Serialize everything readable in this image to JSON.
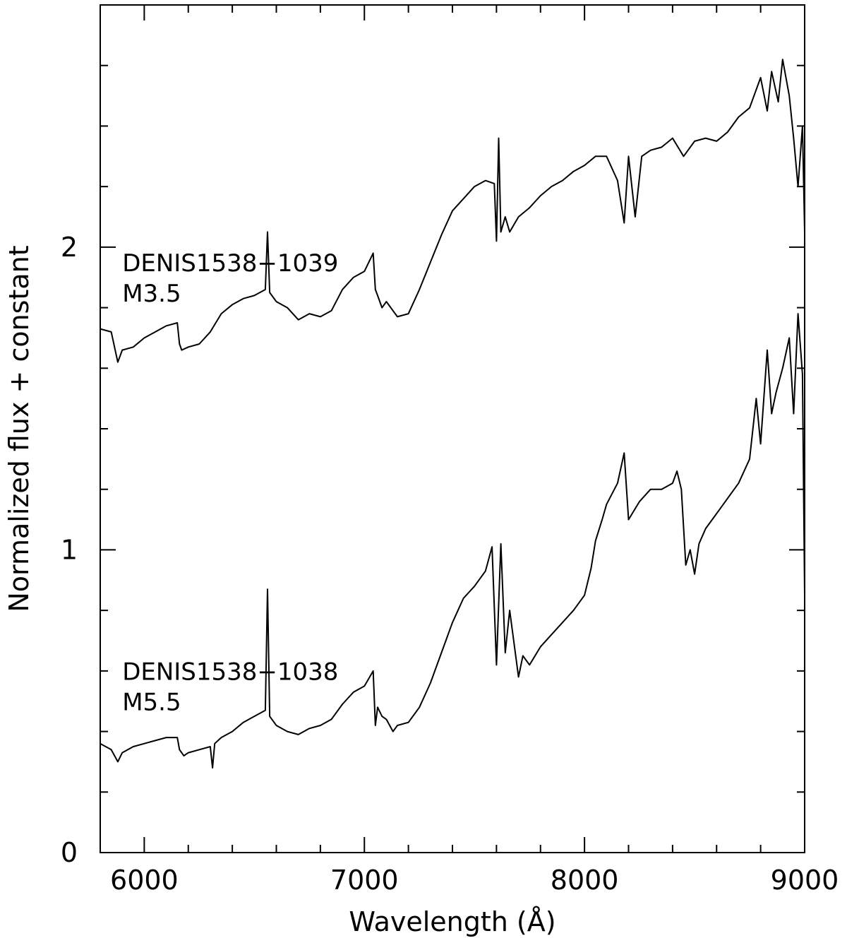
{
  "chart_data": {
    "type": "line",
    "title": "",
    "xlabel": "Wavelength (Å)",
    "ylabel": "Normalized flux + constant",
    "xlim": [
      5800,
      9000
    ],
    "ylim": [
      0,
      2.8
    ],
    "xticks": [
      {
        "value": 6000,
        "label": "6000"
      },
      {
        "value": 7000,
        "label": "7000"
      },
      {
        "value": 8000,
        "label": "8000"
      },
      {
        "value": 9000,
        "label": "9000"
      }
    ],
    "x_minor_step": 200,
    "yticks": [
      {
        "value": 0,
        "label": "0"
      },
      {
        "value": 1,
        "label": "1"
      },
      {
        "value": 2,
        "label": "2"
      }
    ],
    "y_minor_step": 0.2,
    "grid": false,
    "annotations": [
      {
        "text": "DENIS1538−1039",
        "x": 5900,
        "y": 1.92
      },
      {
        "text": "M3.5",
        "x": 5900,
        "y": 1.82
      },
      {
        "text": "DENIS1538−1038",
        "x": 5900,
        "y": 0.57
      },
      {
        "text": "M5.5",
        "x": 5900,
        "y": 0.47
      }
    ],
    "series": [
      {
        "label": "DENIS1538−1039 M3.5",
        "x": [
          5800,
          5850,
          5880,
          5900,
          5950,
          6000,
          6050,
          6100,
          6150,
          6160,
          6170,
          6200,
          6250,
          6300,
          6350,
          6400,
          6450,
          6500,
          6550,
          6560,
          6570,
          6600,
          6650,
          6700,
          6750,
          6800,
          6850,
          6900,
          6950,
          7000,
          7040,
          7050,
          7060,
          7080,
          7100,
          7150,
          7200,
          7250,
          7300,
          7350,
          7400,
          7450,
          7500,
          7550,
          7590,
          7600,
          7610,
          7620,
          7640,
          7660,
          7700,
          7750,
          7800,
          7850,
          7900,
          7950,
          8000,
          8050,
          8100,
          8150,
          8180,
          8200,
          8230,
          8260,
          8300,
          8350,
          8400,
          8450,
          8500,
          8550,
          8600,
          8650,
          8700,
          8750,
          8800,
          8830,
          8850,
          8880,
          8900,
          8930,
          8950,
          8970,
          8990,
          9000
        ],
        "y": [
          1.73,
          1.72,
          1.62,
          1.66,
          1.67,
          1.7,
          1.72,
          1.74,
          1.75,
          1.68,
          1.66,
          1.67,
          1.68,
          1.72,
          1.78,
          1.81,
          1.83,
          1.84,
          1.86,
          2.05,
          1.85,
          1.82,
          1.8,
          1.76,
          1.78,
          1.77,
          1.79,
          1.86,
          1.9,
          1.92,
          1.98,
          1.86,
          1.84,
          1.8,
          1.82,
          1.77,
          1.78,
          1.86,
          1.95,
          2.04,
          2.12,
          2.16,
          2.2,
          2.22,
          2.21,
          2.02,
          2.36,
          2.05,
          2.1,
          2.05,
          2.1,
          2.13,
          2.17,
          2.2,
          2.22,
          2.25,
          2.27,
          2.3,
          2.3,
          2.22,
          2.08,
          2.3,
          2.1,
          2.3,
          2.32,
          2.33,
          2.36,
          2.3,
          2.35,
          2.36,
          2.35,
          2.38,
          2.43,
          2.46,
          2.56,
          2.45,
          2.58,
          2.48,
          2.62,
          2.5,
          2.36,
          2.2,
          2.4,
          2.05
        ]
      },
      {
        "label": "DENIS1538−1038 M5.5",
        "x": [
          5800,
          5850,
          5880,
          5900,
          5950,
          6000,
          6050,
          6100,
          6150,
          6160,
          6180,
          6200,
          6250,
          6300,
          6310,
          6320,
          6350,
          6400,
          6450,
          6500,
          6550,
          6560,
          6570,
          6600,
          6650,
          6700,
          6750,
          6800,
          6850,
          6900,
          6950,
          7000,
          7040,
          7050,
          7060,
          7080,
          7100,
          7130,
          7150,
          7200,
          7250,
          7300,
          7350,
          7400,
          7450,
          7500,
          7550,
          7580,
          7600,
          7620,
          7640,
          7660,
          7700,
          7720,
          7750,
          7800,
          7850,
          7900,
          7950,
          8000,
          8030,
          8050,
          8080,
          8100,
          8150,
          8180,
          8200,
          8250,
          8300,
          8350,
          8400,
          8420,
          8440,
          8460,
          8480,
          8500,
          8520,
          8550,
          8600,
          8650,
          8700,
          8750,
          8780,
          8800,
          8830,
          8850,
          8870,
          8900,
          8930,
          8950,
          8970,
          8990,
          9000
        ],
        "y": [
          0.36,
          0.34,
          0.3,
          0.33,
          0.35,
          0.36,
          0.37,
          0.38,
          0.38,
          0.34,
          0.32,
          0.33,
          0.34,
          0.35,
          0.28,
          0.36,
          0.38,
          0.4,
          0.43,
          0.45,
          0.47,
          0.87,
          0.45,
          0.42,
          0.4,
          0.39,
          0.41,
          0.42,
          0.44,
          0.49,
          0.53,
          0.55,
          0.6,
          0.42,
          0.48,
          0.45,
          0.44,
          0.4,
          0.42,
          0.43,
          0.48,
          0.56,
          0.66,
          0.76,
          0.84,
          0.88,
          0.93,
          1.01,
          0.62,
          1.02,
          0.66,
          0.8,
          0.58,
          0.65,
          0.62,
          0.68,
          0.72,
          0.76,
          0.8,
          0.85,
          0.94,
          1.03,
          1.1,
          1.15,
          1.22,
          1.32,
          1.1,
          1.16,
          1.2,
          1.2,
          1.22,
          1.26,
          1.2,
          0.95,
          1.0,
          0.92,
          1.02,
          1.07,
          1.12,
          1.17,
          1.22,
          1.3,
          1.5,
          1.35,
          1.66,
          1.45,
          1.52,
          1.6,
          1.7,
          1.45,
          1.78,
          1.58,
          0.85
        ]
      }
    ]
  }
}
